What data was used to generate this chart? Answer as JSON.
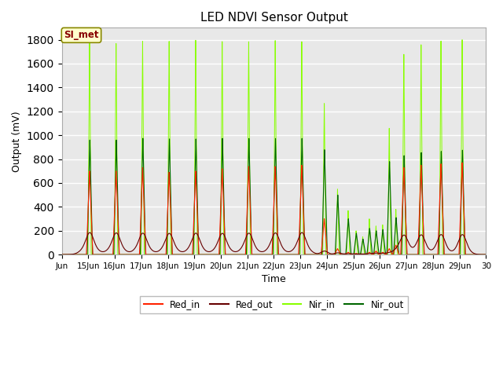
{
  "title": "LED NDVI Sensor Output",
  "xlabel": "Time",
  "ylabel": "Output (mV)",
  "ylim": [
    0,
    1900
  ],
  "xlim_start": 0,
  "xlim_end": 16,
  "background_color": "#ffffff",
  "plot_bg_color": "#e8e8e8",
  "grid_color": "#ffffff",
  "annotation_text": "SI_met",
  "annotation_color": "#880000",
  "annotation_bg": "#ffffcc",
  "annotation_edge": "#888800",
  "colors": {
    "Red_in": "#ff2200",
    "Red_out": "#660000",
    "Nir_in": "#88ff00",
    "Nir_out": "#006600"
  },
  "xtick_labels": [
    "Jun",
    "15Jun",
    "16Jun",
    "17Jun",
    "18Jun",
    "19Jun",
    "20Jun",
    "21Jun",
    "22Jun",
    "23Jun",
    "24Jun",
    "25Jun",
    "26Jun",
    "27Jun",
    "28Jun",
    "29Jun",
    "30"
  ],
  "xtick_positions": [
    0,
    1,
    2,
    3,
    4,
    5,
    6,
    7,
    8,
    9,
    10,
    11,
    12,
    13,
    14,
    15,
    16
  ]
}
